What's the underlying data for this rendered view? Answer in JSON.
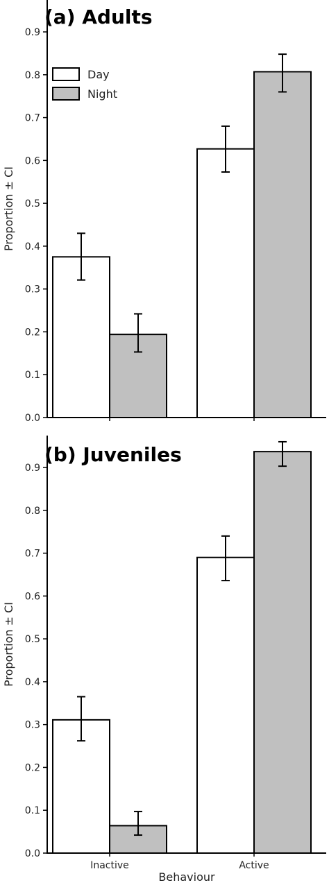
{
  "chart_data": [
    {
      "type": "bar",
      "title": "(a) Adults",
      "ylabel": "Proportion ± CI",
      "xlabel": "",
      "ylim": [
        0,
        0.95
      ],
      "yticks": [
        "0.0",
        "0.1",
        "0.2",
        "0.3",
        "0.4",
        "0.5",
        "0.6",
        "0.7",
        "0.8",
        "0.9"
      ],
      "categories": [
        "Inactive",
        "Active"
      ],
      "show_category_labels": false,
      "legend": {
        "position": "top-left",
        "entries": [
          "Day",
          "Night"
        ]
      },
      "series": [
        {
          "name": "Day",
          "color": "#ffffff",
          "values": [
            0.375,
            0.627
          ],
          "ci_low": [
            0.321,
            0.573
          ],
          "ci_high": [
            0.43,
            0.68
          ]
        },
        {
          "name": "Night",
          "color": "#c0c0c0",
          "values": [
            0.194,
            0.807
          ],
          "ci_low": [
            0.153,
            0.76
          ],
          "ci_high": [
            0.242,
            0.848
          ]
        }
      ]
    },
    {
      "type": "bar",
      "title": "(b) Juveniles",
      "ylabel": "Proportion ± CI",
      "xlabel": "Behaviour",
      "ylim": [
        0,
        0.95
      ],
      "yticks": [
        "0.0",
        "0.1",
        "0.2",
        "0.3",
        "0.4",
        "0.5",
        "0.6",
        "0.7",
        "0.8",
        "0.9"
      ],
      "categories": [
        "Inactive",
        "Active"
      ],
      "show_category_labels": true,
      "series": [
        {
          "name": "Day",
          "color": "#ffffff",
          "values": [
            0.311,
            0.69
          ],
          "ci_low": [
            0.262,
            0.636
          ],
          "ci_high": [
            0.365,
            0.74
          ]
        },
        {
          "name": "Night",
          "color": "#c0c0c0",
          "values": [
            0.064,
            0.937
          ],
          "ci_low": [
            0.042,
            0.903
          ],
          "ci_high": [
            0.097,
            0.96
          ]
        }
      ]
    }
  ]
}
